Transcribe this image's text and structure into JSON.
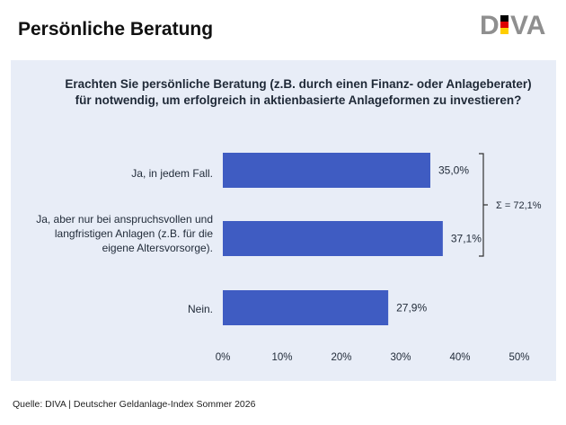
{
  "header": {
    "title": "Persönliche Beratung",
    "logo_text_left": "D",
    "logo_text_right": "VA"
  },
  "colors": {
    "bar": "#3f5cc2",
    "panel_bg": "#e8edf7",
    "logo_gray": "#8f8f8f",
    "flag_black": "#000000",
    "flag_red": "#dd0000",
    "flag_gold": "#ffce00"
  },
  "chart_data": {
    "type": "bar",
    "orientation": "horizontal",
    "title": "Erachten Sie persönliche Beratung (z.B. durch einen Finanz- oder Anlageberater) für notwendig, um erfolgreich in aktienbasierte Anlageformen zu investieren?",
    "categories": [
      "Ja, in jedem Fall.",
      "Ja, aber nur bei anspruchsvollen und langfristigen Anlagen (z.B. für die eigene Altersvorsorge).",
      "Nein."
    ],
    "values": [
      35.0,
      37.1,
      27.9
    ],
    "value_labels": [
      "35,0%",
      "37,1%",
      "27,9%"
    ],
    "xlim": [
      0,
      50
    ],
    "xticks": [
      "0%",
      "10%",
      "20%",
      "30%",
      "40%",
      "50%"
    ],
    "grid": false,
    "annotation": "Σ = 72,1%"
  },
  "footer": {
    "source": "Quelle: DIVA | Deutscher Geldanlage-Index Sommer 2026"
  }
}
